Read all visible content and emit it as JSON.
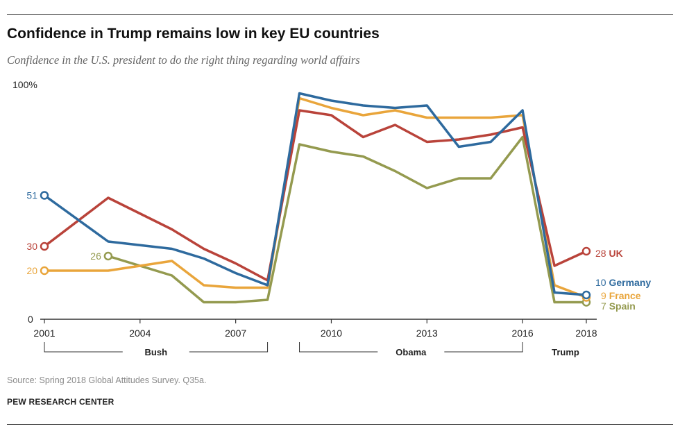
{
  "header": {
    "title": "Confidence in Trump remains low in key EU countries",
    "subtitle": "Confidence in the U.S. president to do the right thing regarding world affairs"
  },
  "footer": {
    "source": "Source: Spring 2018 Global Attitudes Survey. Q35a.",
    "credit": "PEW RESEARCH CENTER"
  },
  "chart_data": {
    "type": "line",
    "title": "Confidence in Trump remains low in key EU countries",
    "subtitle": "Confidence in the U.S. president to do the right thing regarding world affairs",
    "y_top_label": "100%",
    "y_bottom_label": "0",
    "ylim": [
      0,
      100
    ],
    "xlim": [
      2001,
      2018
    ],
    "x_ticks": [
      2001,
      2004,
      2007,
      2010,
      2013,
      2016,
      2018
    ],
    "grid": false,
    "legend": "inline labels at line ends (right)",
    "presidencies": [
      {
        "name": "Bush",
        "start": 2001,
        "end": 2008
      },
      {
        "name": "Obama",
        "start": 2009,
        "end": 2016
      },
      {
        "name": "Trump",
        "start": 2017,
        "end": 2018
      }
    ],
    "series": [
      {
        "name": "Spain",
        "color": "#949a4f",
        "x": [
          2003,
          2005,
          2006,
          2007,
          2008,
          2009,
          2010,
          2011,
          2012,
          2013,
          2014,
          2015,
          2016,
          2017,
          2018
        ],
        "y": [
          26,
          18,
          7,
          7,
          8,
          72,
          69,
          67,
          61,
          54,
          58,
          58,
          75,
          7,
          7
        ],
        "start_label": "26",
        "end_label": "7"
      },
      {
        "name": "France",
        "color": "#e9a53b",
        "x": [
          2001,
          2003,
          2005,
          2006,
          2007,
          2008,
          2009,
          2010,
          2011,
          2012,
          2013,
          2014,
          2015,
          2016,
          2017,
          2018
        ],
        "y": [
          20,
          20,
          24,
          14,
          13,
          13,
          91,
          87,
          84,
          86,
          83,
          83,
          83,
          84,
          14,
          9
        ],
        "start_label": "20",
        "end_label": "9"
      },
      {
        "name": "UK",
        "color": "#b9433a",
        "x": [
          2001,
          2003,
          2005,
          2006,
          2007,
          2008,
          2009,
          2010,
          2011,
          2012,
          2013,
          2014,
          2015,
          2016,
          2017,
          2018
        ],
        "y": [
          30,
          50,
          37,
          29,
          23,
          16,
          86,
          84,
          75,
          80,
          73,
          74,
          76,
          79,
          22,
          28
        ],
        "start_label": "30",
        "end_label": "28"
      },
      {
        "name": "Germany",
        "color": "#2e6a9e",
        "x": [
          2001,
          2003,
          2005,
          2006,
          2007,
          2008,
          2009,
          2010,
          2011,
          2012,
          2013,
          2014,
          2015,
          2016,
          2017,
          2018
        ],
        "y": [
          51,
          32,
          29,
          25,
          19,
          14,
          93,
          90,
          88,
          87,
          88,
          71,
          73,
          86,
          11,
          10
        ],
        "start_label": "51",
        "end_label": "10"
      }
    ]
  }
}
